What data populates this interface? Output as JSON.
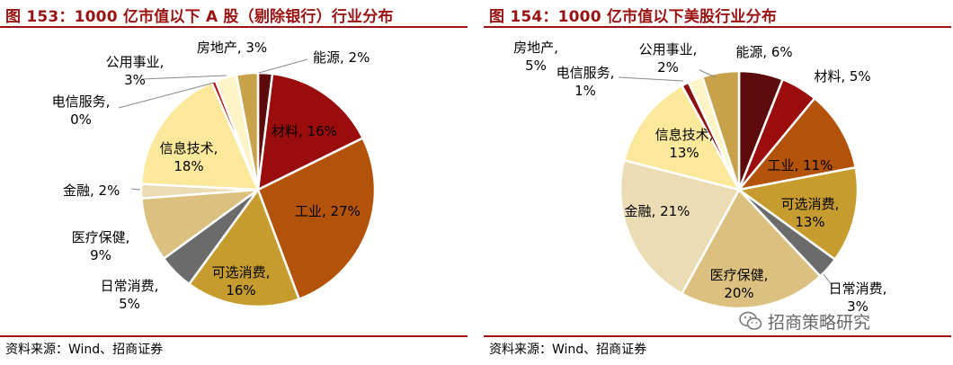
{
  "panels": [
    {
      "title": "图 153：1000 亿市值以下 A 股（剔除银行）行业分布",
      "source": "资料来源：Wind、招商证券"
    },
    {
      "title": "图 154：1000 亿市值以下美股行业分布",
      "source": "资料来源：Wind、招商证券"
    }
  ],
  "watermark": {
    "text": "招商策略研究",
    "icon": "wechat-icon"
  },
  "chart_data": [
    {
      "type": "pie",
      "title": "图 153：1000 亿市值以下 A 股（剔除银行）行业分布",
      "start_angle": "12 o'clock",
      "direction": "clockwise",
      "slices": [
        {
          "label": "能源",
          "value": 2,
          "display": "能源, 2%",
          "color": "#5c0a0a"
        },
        {
          "label": "材料",
          "value": 16,
          "display": "材料, 16%",
          "color": "#9b0d0d"
        },
        {
          "label": "工业",
          "value": 27,
          "display": "工业, 27%",
          "color": "#b35209"
        },
        {
          "label": "可选消费",
          "value": 16,
          "display": "可选消费, 16%",
          "color": "#c79c2e"
        },
        {
          "label": "日常消费",
          "value": 5,
          "display": "日常消费, 5%",
          "color": "#6b6b6b"
        },
        {
          "label": "医疗保健",
          "value": 9,
          "display": "医疗保健, 9%",
          "color": "#dcc07f"
        },
        {
          "label": "金融",
          "value": 2,
          "display": "金融, 2%",
          "color": "#ebdcb4"
        },
        {
          "label": "信息技术",
          "value": 18,
          "display": "信息技术, 18%",
          "color": "#fbe89a"
        },
        {
          "label": "电信服务",
          "value": 0,
          "display": "电信服务, 0%",
          "color": "#b30d0d"
        },
        {
          "label": "公用事业",
          "value": 3,
          "display": "公用事业, 3%",
          "color": "#fff4c7"
        },
        {
          "label": "房地产",
          "value": 3,
          "display": "房地产, 3%",
          "color": "#c8a24a"
        }
      ]
    },
    {
      "type": "pie",
      "title": "图 154：1000 亿市值以下美股行业分布",
      "start_angle": "12 o'clock",
      "direction": "clockwise",
      "slices": [
        {
          "label": "能源",
          "value": 6,
          "display": "能源, 6%",
          "color": "#5c0a0a"
        },
        {
          "label": "材料",
          "value": 5,
          "display": "材料, 5%",
          "color": "#9b0d0d"
        },
        {
          "label": "工业",
          "value": 11,
          "display": "工业, 11%",
          "color": "#b35209"
        },
        {
          "label": "可选消费",
          "value": 13,
          "display": "可选消费, 13%",
          "color": "#c79c2e"
        },
        {
          "label": "日常消费",
          "value": 3,
          "display": "日常消费, 3%",
          "color": "#6b6b6b"
        },
        {
          "label": "医疗保健",
          "value": 20,
          "display": "医疗保健, 20%",
          "color": "#dcc07f"
        },
        {
          "label": "金融",
          "value": 21,
          "display": "金融, 21%",
          "color": "#ebdcb4"
        },
        {
          "label": "信息技术",
          "value": 13,
          "display": "信息技术, 13%",
          "color": "#fbe89a"
        },
        {
          "label": "电信服务",
          "value": 1,
          "display": "电信服务, 1%",
          "color": "#8a0f0f"
        },
        {
          "label": "公用事业",
          "value": 2,
          "display": "公用事业, 2%",
          "color": "#fff4c7"
        },
        {
          "label": "房地产",
          "value": 5,
          "display": "房地产, 5%",
          "color": "#c8a24a"
        }
      ]
    }
  ]
}
